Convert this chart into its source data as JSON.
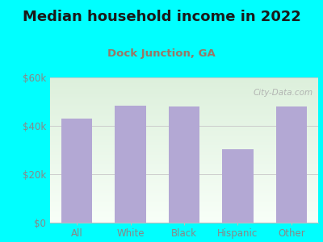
{
  "title": "Median household income in 2022",
  "subtitle": "Dock Junction, GA",
  "categories": [
    "All",
    "White",
    "Black",
    "Hispanic",
    "Other"
  ],
  "values": [
    43000,
    48500,
    48000,
    30500,
    48000
  ],
  "bar_color": "#b3a8d4",
  "background_outer": "#00ffff",
  "background_inner_top": "#ddf0dc",
  "background_inner_bottom": "#f8fff8",
  "title_color": "#1a1a1a",
  "subtitle_color": "#997766",
  "tick_label_color": "#888888",
  "ytick_label_color": "#888888",
  "ylim": [
    0,
    60000
  ],
  "yticks": [
    0,
    20000,
    40000,
    60000
  ],
  "ytick_labels": [
    "$0",
    "$20k",
    "$40k",
    "$60k"
  ],
  "watermark_text": "City-Data.com",
  "title_fontsize": 13,
  "subtitle_fontsize": 9.5,
  "tick_fontsize": 8.5,
  "ytick_fontsize": 8.5
}
